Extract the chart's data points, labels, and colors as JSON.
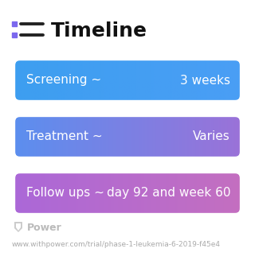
{
  "title": "Timeline",
  "background_color": "#ffffff",
  "rows": [
    {
      "label": "Screening ~",
      "value": "3 weeks",
      "color_left": "#3d9ef0",
      "color_right": "#4a9ef5"
    },
    {
      "label": "Treatment ~",
      "value": "Varies",
      "color_left": "#5b8fef",
      "color_right": "#9b72d8"
    },
    {
      "label": "Follow ups ~",
      "value": "day 92 and week 60",
      "color_left": "#ab68d8",
      "color_right": "#c46fc0"
    }
  ],
  "footer_logo_text": "Power",
  "footer_url": "www.withpower.com/trial/phase-1-leukemia-6-2019-f45e4",
  "icon_color": "#7b68ee",
  "title_fontsize": 18,
  "row_fontsize": 11,
  "footer_fontsize": 6.5,
  "text_color": "#ffffff",
  "footer_color": "#aaaaaa",
  "footer_logo_color": "#bbbbbb"
}
